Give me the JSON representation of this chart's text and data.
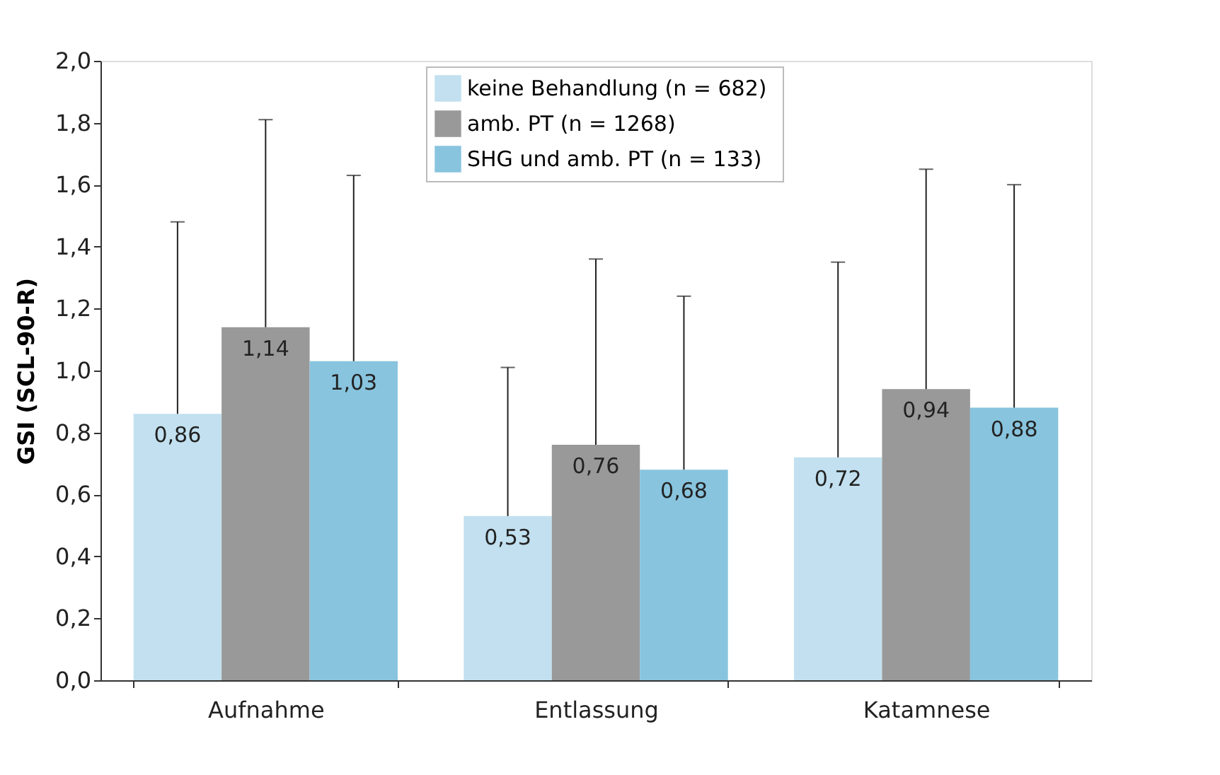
{
  "chart_data": {
    "type": "bar",
    "ylabel": "GSI (SCL-90-R)",
    "categories": [
      "Aufnahme",
      "Entlassung",
      "Katamnese"
    ],
    "series": [
      {
        "name": "keine Behandlung  (n = 682)",
        "color": "#c2e0ef",
        "values": [
          0.86,
          0.53,
          0.72
        ],
        "value_labels": [
          "0,86",
          "0,53",
          "0,72"
        ],
        "errors": [
          [
            0.86,
            1.48
          ],
          [
            0.53,
            1.01
          ],
          [
            0.72,
            1.35
          ]
        ]
      },
      {
        "name": "amb. PT (n = 1268)",
        "color": "#999999",
        "values": [
          1.14,
          0.76,
          0.94
        ],
        "value_labels": [
          "1,14",
          "0,76",
          "0,94"
        ],
        "errors": [
          [
            1.14,
            1.81
          ],
          [
            0.76,
            1.36
          ],
          [
            0.94,
            1.65
          ]
        ]
      },
      {
        "name": "SHG und amb. PT (n = 133)",
        "color": "#88c4de",
        "values": [
          1.03,
          0.68,
          0.88
        ],
        "value_labels": [
          "1,03",
          "0,68",
          "0,88"
        ],
        "errors": [
          [
            1.03,
            1.63
          ],
          [
            0.68,
            1.24
          ],
          [
            0.88,
            1.6
          ]
        ]
      }
    ],
    "ylim": [
      0,
      2
    ],
    "yticks": [
      {
        "value": 0,
        "label": "0,0"
      },
      {
        "value": 0.2,
        "label": "0,2"
      },
      {
        "value": 0.4,
        "label": "0,4"
      },
      {
        "value": 0.6,
        "label": "0,6"
      },
      {
        "value": 0.8,
        "label": "0,8"
      },
      {
        "value": 1,
        "label": "1,0"
      },
      {
        "value": 1.2,
        "label": "1,2"
      },
      {
        "value": 1.4,
        "label": "1,4"
      },
      {
        "value": 1.6,
        "label": "1,6"
      },
      {
        "value": 1.8,
        "label": "1,8"
      },
      {
        "value": 2,
        "label": "2,0"
      }
    ],
    "grid": false,
    "legend": "top"
  }
}
